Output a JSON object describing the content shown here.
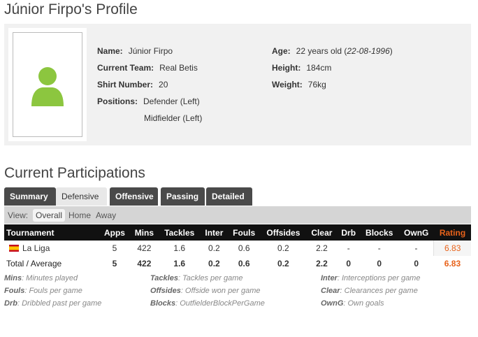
{
  "title": "Júnior Firpo's Profile",
  "profile": {
    "name_label": "Name:",
    "name": "Júnior Firpo",
    "team_label": "Current Team:",
    "team": "Real Betis",
    "shirt_label": "Shirt Number:",
    "shirt": "20",
    "positions_label": "Positions:",
    "positions": [
      "Defender (Left)",
      "Midfielder (Left)"
    ],
    "age_label": "Age:",
    "age": "22 years old (",
    "dob": "22-08-1996",
    "age_close": ")",
    "height_label": "Height:",
    "height": "184cm",
    "weight_label": "Weight:",
    "weight": "76kg"
  },
  "participations_title": "Current Participations",
  "tabs": [
    "Summary",
    "Defensive",
    "Offensive",
    "Passing",
    "Detailed"
  ],
  "active_tab": "Defensive",
  "view": {
    "label": "View:",
    "options": [
      "Overall",
      "Home",
      "Away"
    ],
    "selected": "Overall"
  },
  "table": {
    "headers": [
      "Tournament",
      "Apps",
      "Mins",
      "Tackles",
      "Inter",
      "Fouls",
      "Offsides",
      "Clear",
      "Drb",
      "Blocks",
      "OwnG",
      "Rating"
    ],
    "rows": [
      [
        "La Liga",
        "5",
        "422",
        "1.6",
        "0.2",
        "0.6",
        "0.2",
        "2.2",
        "-",
        "-",
        "-",
        "6.83"
      ]
    ],
    "total": [
      "Total / Average",
      "5",
      "422",
      "1.6",
      "0.2",
      "0.6",
      "0.2",
      "2.2",
      "0",
      "0",
      "0",
      "6.83"
    ]
  },
  "legend": [
    {
      "k": "Mins",
      "v": ": Minutes played"
    },
    {
      "k": "Tackles",
      "v": ": Tackles per game"
    },
    {
      "k": "Inter",
      "v": ": Interceptions per game"
    },
    {
      "k": "Fouls",
      "v": ": Fouls per game"
    },
    {
      "k": "Offsides",
      "v": ": Offside won per game"
    },
    {
      "k": "Clear",
      "v": ": Clearances per game"
    },
    {
      "k": "Drb",
      "v": ": Dribbled past per game"
    },
    {
      "k": "Blocks",
      "v": ": OutfielderBlockPerGame"
    },
    {
      "k": "OwnG",
      "v": ": Own goals"
    }
  ],
  "colors": {
    "rating": "#e8621a",
    "silhouette": "#8cc63f",
    "header_bg": "#111111"
  }
}
